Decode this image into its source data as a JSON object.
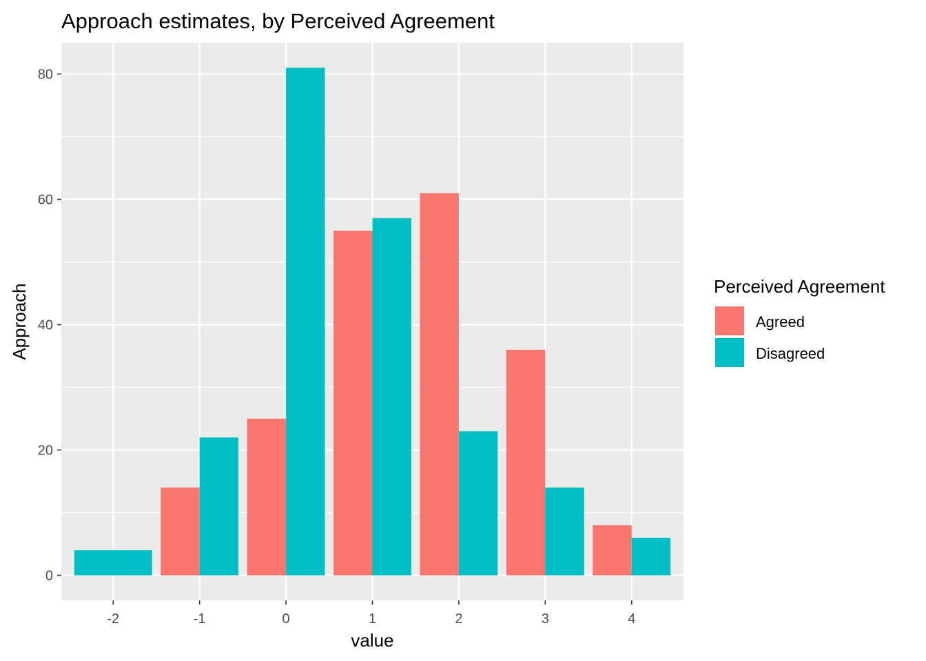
{
  "chart_data": {
    "type": "bar",
    "title": "Approach estimates, by Perceived Agreement",
    "xlabel": "value",
    "ylabel": "Approach",
    "categories": [
      "-2",
      "-1",
      "0",
      "1",
      "2",
      "3",
      "4"
    ],
    "series": [
      {
        "name": "Agreed",
        "color": "#F8766D",
        "values": [
          null,
          14,
          25,
          55,
          61,
          36,
          8
        ]
      },
      {
        "name": "Disagreed",
        "color": "#00BFC4",
        "values": [
          4,
          22,
          81,
          57,
          23,
          14,
          6
        ]
      }
    ],
    "ylim": [
      -4,
      85
    ],
    "y_ticks": [
      0,
      20,
      40,
      60,
      80
    ],
    "grid": true,
    "panel_background": "#EBEBEB",
    "legend": {
      "title": "Perceived Agreement",
      "position": "right"
    }
  }
}
